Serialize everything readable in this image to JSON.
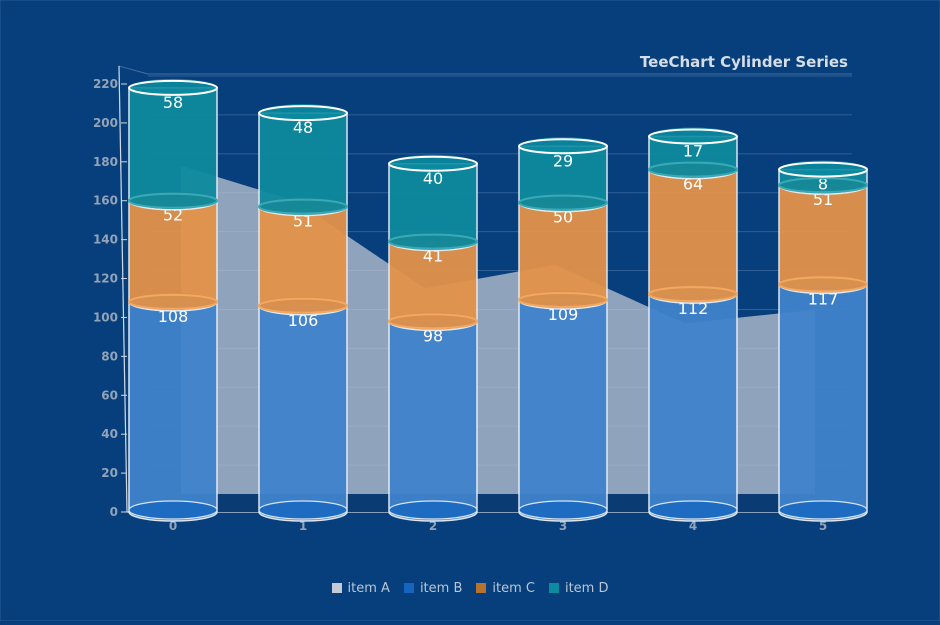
{
  "chart_data": {
    "type": "bar",
    "subtype": "stacked-cylinder",
    "title": "TeeChart Cylinder Series",
    "categories": [
      "0",
      "1",
      "2",
      "3",
      "4",
      "5"
    ],
    "ylim": [
      0,
      220
    ],
    "yticks": [
      0,
      20,
      40,
      60,
      80,
      100,
      120,
      140,
      160,
      180,
      200,
      220
    ],
    "grid": true,
    "legend_position": "bottom",
    "area_series": {
      "name": "item A",
      "values": [
        178,
        160,
        115,
        127,
        97,
        104
      ],
      "color": "#c5cbd6"
    },
    "series": [
      {
        "name": "item B",
        "values": [
          108,
          106,
          98,
          109,
          112,
          117
        ],
        "color": "#1565c0"
      },
      {
        "name": "item C",
        "values": [
          52,
          51,
          41,
          50,
          64,
          51
        ],
        "color": "#b5732e"
      },
      {
        "name": "item D",
        "values": [
          58,
          48,
          40,
          29,
          17,
          8
        ],
        "color": "#0b8aa0"
      }
    ]
  }
}
